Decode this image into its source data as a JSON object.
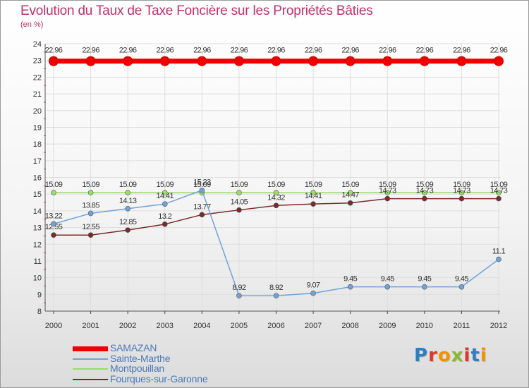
{
  "title": "Evolution du Taux de Taxe Foncière sur les Propriétés Bâties",
  "subtitle": "(en %)",
  "logo": {
    "text": "Proxiti",
    "letters": [
      {
        "ch": "P",
        "color": "#2f7fc1"
      },
      {
        "ch": "r",
        "color": "#e0352b"
      },
      {
        "ch": "o",
        "color": "#f39200"
      },
      {
        "ch": "x",
        "color": "#8ab833"
      },
      {
        "ch": "i",
        "color": "#e0352b"
      },
      {
        "ch": "t",
        "color": "#2f7fc1"
      },
      {
        "ch": "i",
        "color": "#f39200"
      }
    ]
  },
  "chart_data": {
    "type": "line",
    "title": "Evolution du Taux de Taxe Foncière sur les Propriétés Bâties",
    "ylabel": "(en %)",
    "xlabel": "",
    "x": [
      "2000",
      "2001",
      "2002",
      "2003",
      "2004",
      "2005",
      "2006",
      "2007",
      "2008",
      "2009",
      "2010",
      "2011",
      "2012"
    ],
    "ylim": [
      8,
      24
    ],
    "yticks": [
      "8",
      "9",
      "10",
      "11",
      "12",
      "13",
      "14",
      "15",
      "16",
      "17",
      "18",
      "19",
      "20",
      "21",
      "22",
      "23",
      "24"
    ],
    "grid": true,
    "legend": "bottom-left",
    "series": [
      {
        "name": "SAMAZAN",
        "color": "#ee0000",
        "values": [
          22.96,
          22.96,
          22.96,
          22.96,
          22.96,
          22.96,
          22.96,
          22.96,
          22.96,
          22.96,
          22.96,
          22.96,
          22.96
        ],
        "labels": [
          "22.96",
          "22.96",
          "22.96",
          "22.96",
          "22.96",
          "22.96",
          "22.96",
          "22.96",
          "22.96",
          "22.96",
          "22.96",
          "22.96",
          "22.96"
        ]
      },
      {
        "name": "Sainte-Marthe",
        "color": "#6fa3d8",
        "values": [
          13.22,
          13.85,
          14.13,
          14.41,
          15.23,
          8.92,
          8.92,
          9.07,
          9.45,
          9.45,
          9.45,
          9.45,
          11.1
        ],
        "labels": [
          "13.22",
          "13.85",
          "14.13",
          "14.41",
          "15.23",
          "8.92",
          "8.92",
          "9.07",
          "9.45",
          "9.45",
          "9.45",
          "9.45",
          "11.1"
        ]
      },
      {
        "name": "Montpouillan",
        "color": "#9bdc6a",
        "values": [
          15.09,
          15.09,
          15.09,
          15.09,
          15.09,
          15.09,
          15.09,
          15.09,
          15.09,
          15.09,
          15.09,
          15.09,
          15.09
        ],
        "labels": [
          "15.09",
          "15.09",
          "15.09",
          "15.09",
          "15.09",
          "15.09",
          "15.09",
          "15.09",
          "15.09",
          "15.09",
          "15.09",
          "15.09",
          "15.09"
        ]
      },
      {
        "name": "Fourques-sur-Garonne",
        "color": "#7a2a2a",
        "values": [
          12.55,
          12.55,
          12.85,
          13.2,
          13.77,
          14.05,
          14.32,
          14.41,
          14.47,
          14.73,
          14.73,
          14.73,
          14.73
        ],
        "labels": [
          "12.55",
          "12.55",
          "12.85",
          "13.2",
          "13.77",
          "14.05",
          "14.32",
          "14.41",
          "14.47",
          "14.73",
          "14.73",
          "14.73",
          "14.73"
        ]
      }
    ]
  }
}
